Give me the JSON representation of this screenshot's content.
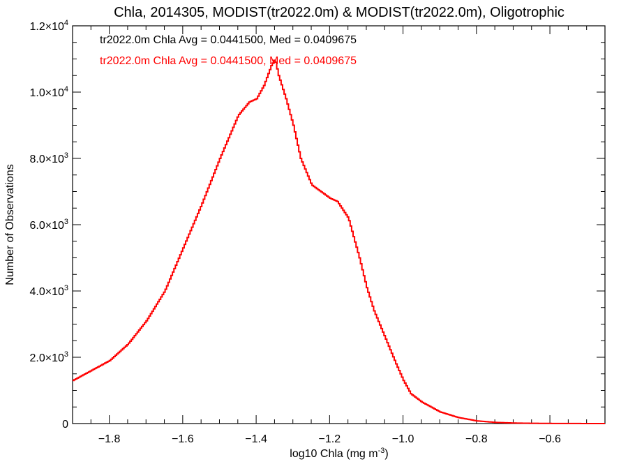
{
  "chart_data": {
    "type": "line",
    "title": "Chla, 2014305, MODIST(tr2022.0m) & MODIST(tr2022.0m), Oligotrophic",
    "xlabel": {
      "base": "log10 Chla (mg m",
      "sup": "-3",
      "close": ")"
    },
    "ylabel": "Number of Observations",
    "xlim": [
      -1.9,
      -0.45
    ],
    "ylim": [
      0,
      12000
    ],
    "grid": false,
    "x_ticks": [
      -1.8,
      -1.6,
      -1.4,
      -1.2,
      -1.0,
      -0.8,
      -0.6
    ],
    "x_tick_labels": [
      "−1.8",
      "−1.6",
      "−1.4",
      "−1.2",
      "−1.0",
      "−0.8",
      "−0.6"
    ],
    "y_ticks": [
      {
        "value": 0,
        "label": "0",
        "exp": ""
      },
      {
        "value": 2000,
        "label": "2.0×10",
        "exp": "3"
      },
      {
        "value": 4000,
        "label": "4.0×10",
        "exp": "3"
      },
      {
        "value": 6000,
        "label": "6.0×10",
        "exp": "3"
      },
      {
        "value": 8000,
        "label": "8.0×10",
        "exp": "3"
      },
      {
        "value": 10000,
        "label": "1.0×10",
        "exp": "4"
      },
      {
        "value": 12000,
        "label": "1.2×10",
        "exp": "4"
      }
    ],
    "annotations": [
      {
        "text": "tr2022.0m Chla Avg = 0.0441500, Med = 0.0409675",
        "color": "#000000"
      },
      {
        "text": "tr2022.0m Chla Avg = 0.0441500, Med = 0.0409675",
        "color": "#ff0000"
      }
    ],
    "series": [
      {
        "color": "#ff0000",
        "style": "step",
        "x": [
          -1.9,
          -1.85,
          -1.8,
          -1.75,
          -1.7,
          -1.65,
          -1.6,
          -1.55,
          -1.5,
          -1.45,
          -1.42,
          -1.4,
          -1.38,
          -1.36,
          -1.35,
          -1.34,
          -1.32,
          -1.3,
          -1.28,
          -1.25,
          -1.2,
          -1.18,
          -1.15,
          -1.12,
          -1.1,
          -1.08,
          -1.05,
          -1.02,
          -1.0,
          -0.98,
          -0.95,
          -0.92,
          -0.9,
          -0.85,
          -0.8,
          -0.75,
          -0.7,
          -0.65,
          -0.6,
          -0.55,
          -0.5,
          -0.45
        ],
        "y": [
          1300,
          1600,
          1900,
          2400,
          3100,
          4000,
          5300,
          6600,
          8000,
          9300,
          9700,
          9800,
          10200,
          10800,
          11000,
          10500,
          9800,
          9000,
          8000,
          7200,
          6800,
          6700,
          6200,
          5000,
          4100,
          3400,
          2600,
          1800,
          1300,
          900,
          650,
          470,
          350,
          180,
          80,
          35,
          15,
          8,
          4,
          2,
          1,
          0
        ]
      }
    ]
  }
}
